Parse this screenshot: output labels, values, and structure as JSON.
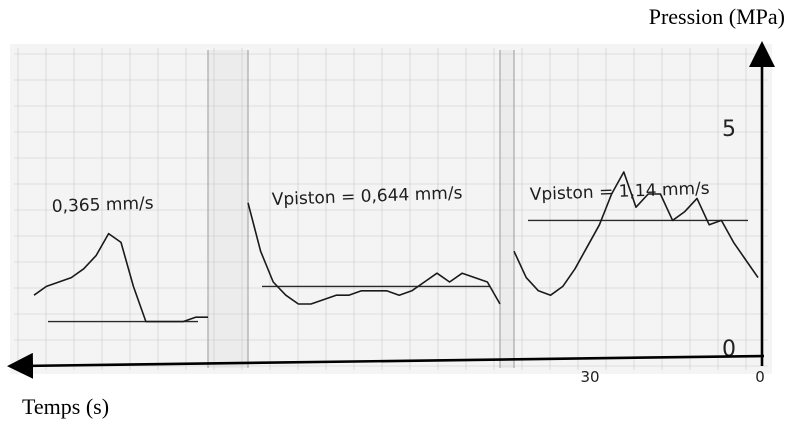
{
  "chart_data": {
    "type": "line",
    "ylabel": "Pression (MPa)",
    "xlabel": "Temps (s)",
    "y_ticks": [
      "5",
      "0"
    ],
    "x_ticks": [
      "30",
      "0"
    ],
    "x_axis_direction": "right-to-left",
    "grid": "graph paper",
    "annotations": [
      "0,365 mm/s",
      "Vpiston = 0,644 mm/s",
      "Vpiston = 1,14 mm/s"
    ],
    "series": [
      {
        "values": [
          1.2,
          1.4,
          1.5,
          1.6,
          1.8,
          2.1,
          2.6,
          2.4,
          1.4,
          0.6,
          0.6,
          0.6,
          0.6,
          0.7,
          0.7
        ]
      },
      {
        "values": [
          3.3,
          2.2,
          1.5,
          1.2,
          1.0,
          1.0,
          1.1,
          1.2,
          1.2,
          1.3,
          1.3,
          1.3,
          1.2,
          1.3,
          1.5,
          1.7,
          1.5,
          1.7,
          1.6,
          1.5,
          1.0
        ]
      },
      {
        "values": [
          2.2,
          1.6,
          1.3,
          1.2,
          1.4,
          1.8,
          2.3,
          2.8,
          3.5,
          4.0,
          3.2,
          3.5,
          3.5,
          2.9,
          3.1,
          3.4,
          2.8,
          2.9,
          2.4,
          2.0,
          1.6
        ]
      }
    ],
    "mean_levels": [
      0.6,
      1.4,
      2.9
    ]
  }
}
